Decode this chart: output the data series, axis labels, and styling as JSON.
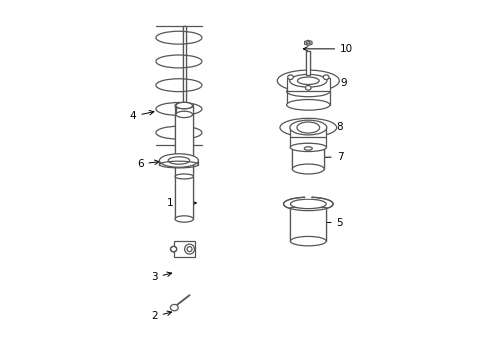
{
  "background_color": "#ffffff",
  "line_color": "#555555",
  "fig_width": 4.89,
  "fig_height": 3.6,
  "dpi": 100,
  "label_info": {
    "1": [
      0.3,
      0.435,
      0.375,
      0.435
    ],
    "2": [
      0.255,
      0.115,
      0.305,
      0.13
    ],
    "3": [
      0.255,
      0.225,
      0.305,
      0.24
    ],
    "4": [
      0.195,
      0.68,
      0.255,
      0.695
    ],
    "5": [
      0.76,
      0.38,
      0.68,
      0.38
    ],
    "6": [
      0.215,
      0.545,
      0.27,
      0.553
    ],
    "7": [
      0.76,
      0.565,
      0.67,
      0.563
    ],
    "8": [
      0.76,
      0.65,
      0.68,
      0.648
    ],
    "9": [
      0.77,
      0.775,
      0.705,
      0.775
    ],
    "10": [
      0.77,
      0.87,
      0.655,
      0.87
    ]
  }
}
